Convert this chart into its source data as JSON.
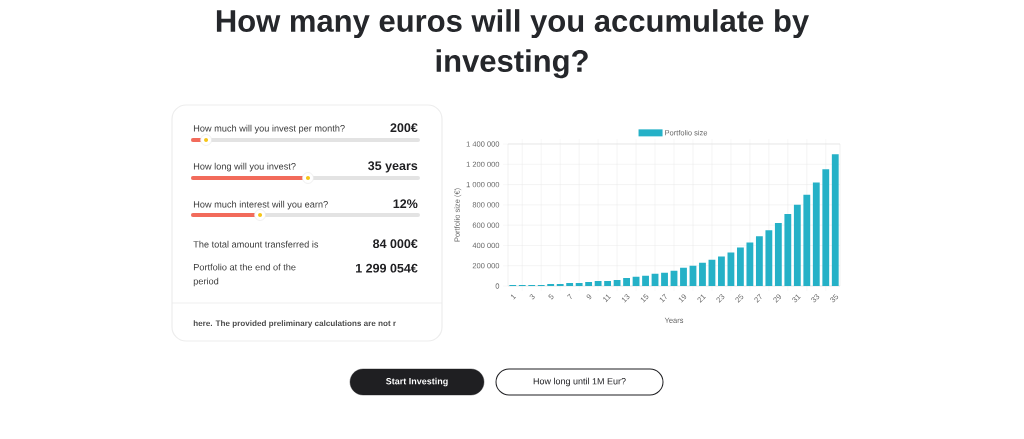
{
  "chart_data": [
    {
      "type": "other",
      "annotations": [
        "How much will you invest per month?",
        "200€",
        "How long will you invest?",
        "35 years",
        "How much interest will you earn?",
        "12%",
        "The total amount transferred is",
        "84 000€",
        "Portfolio at the end of the period",
        "1 299 054€",
        "here. The provided preliminary calculations are not r",
        "Start Investing",
        "How long until 1M Eur?"
      ]
    },
    {
      "type": "bar",
      "title": "How many euros will you accumulate by investing?",
      "xlabel": "Years",
      "ylabel": "Portfolio size (€)",
      "categories": [
        "1",
        null,
        "3",
        null,
        "5",
        null,
        "7",
        null,
        "9",
        null,
        "11",
        null,
        "13",
        null,
        "15",
        null,
        "17",
        null,
        "19",
        null,
        "21",
        null,
        "23",
        null,
        "25",
        null,
        "27",
        null,
        "29",
        null,
        "31",
        null,
        "33",
        null,
        "35"
      ],
      "series": [
        {
          "name": "Portfolio size",
          "color": "#25b1c7",
          "values": [
            10000,
            10000,
            10000,
            10000,
            20000,
            20000,
            30000,
            30000,
            40000,
            50000,
            50000,
            60000,
            80000,
            90000,
            100000,
            120000,
            130000,
            150000,
            180000,
            200000,
            230000,
            260000,
            290000,
            330000,
            380000,
            430000,
            490000,
            550000,
            620000,
            710000,
            800000,
            900000,
            1020000,
            1150000,
            1300000
          ]
        }
      ],
      "ylim": [
        0,
        1400000
      ],
      "yticks": [
        0,
        {
          "value": 200000,
          "label": "200 000"
        },
        {
          "value": 400000,
          "label": "400 000"
        },
        {
          "value": 600000,
          "label": "600 000"
        },
        {
          "value": 800000,
          "label": "800 000"
        },
        {
          "value": 1000000,
          "label": "1 000 000"
        },
        {
          "value": 1200000,
          "label": "1 200 000"
        },
        {
          "value": 1400000,
          "label": "1 400 000"
        }
      ],
      "grid": true,
      "legend": "top"
    }
  ]
}
